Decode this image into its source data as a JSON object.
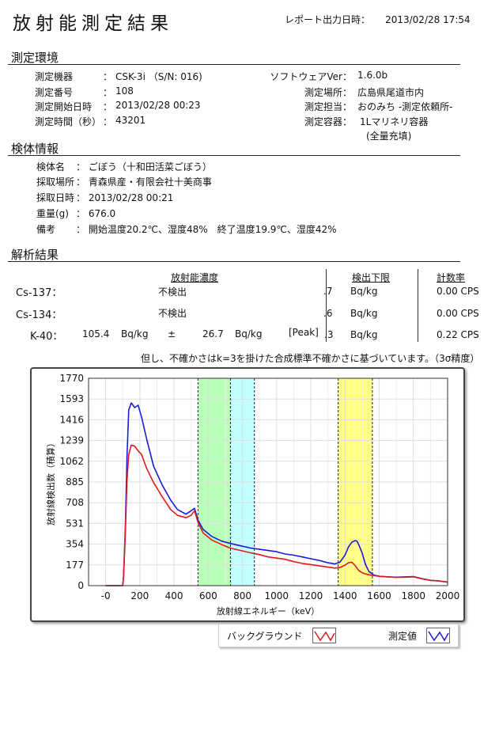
{
  "header": {
    "title": "放射能測定結果",
    "report_label": "レポート出力日時：",
    "report_datetime": "2013/02/28 17:54"
  },
  "env": {
    "section": "測定環境",
    "left": [
      {
        "label": "測定機器",
        "value": "CSK-3i （S/N: 016)"
      },
      {
        "label": "測定番号",
        "value": "108"
      },
      {
        "label": "測定開始日時",
        "value": "2013/02/28 00:23"
      },
      {
        "label": "測定時間（秒）",
        "value": "43201"
      }
    ],
    "right": [
      {
        "label": "ソフトウェアVer：",
        "value": "1.6.0b"
      },
      {
        "label": "測定場所：",
        "value": "広島県尾道市内"
      },
      {
        "label": "測定担当：",
        "value": "おのみち -測定依頼所-"
      },
      {
        "label": "測定容器：",
        "value": "1Lマリネリ容器"
      }
    ],
    "container_note": "(全量充填)"
  },
  "sample": {
    "section": "検体情報",
    "rows": [
      {
        "label": "検体名",
        "value": "： ごぼう（十和田活菜ごぼう）"
      },
      {
        "label": "採取場所",
        "value": "： 青森県産・有限会社十美商事"
      },
      {
        "label": "採取日時",
        "value": "： 2013/02/28 00:21"
      },
      {
        "label": "重量(g)",
        "value": "： 676.0"
      },
      {
        "label": "備考",
        "value": "： 開始温度20.2℃、湿度48%　終了温度19.9℃、湿度42%"
      }
    ]
  },
  "analysis": {
    "section": "解析結果",
    "headers": {
      "concentration": "放射能濃度",
      "detection_limit": "検出下限",
      "count_rate": "計数率"
    },
    "rows": [
      {
        "nuclide": "Cs-137：",
        "result": "不検出",
        "limit": ".7",
        "limit_unit": "Bq/kg",
        "cps": "0.00 CPS"
      },
      {
        "nuclide": "Cs-134：",
        "result": "不検出",
        "limit": ".6",
        "limit_unit": "Bq/kg",
        "cps": "0.00 CPS"
      }
    ],
    "k40": {
      "nuclide": "K-40：",
      "value": "105.4",
      "unit": "Bq/kg",
      "pm": "±",
      "uncertainty": "26.7",
      "unit2": "Bq/kg",
      "peak": "[Peak]",
      "limit": ".3",
      "limit_unit": "Bq/kg",
      "cps": "0.22 CPS"
    },
    "note": "但し、不確かさはk=3を掛けた合成標準不確かさに基づいています。（3σ精度）"
  },
  "legend": {
    "background": "バックグラウンド",
    "measured": "測定値"
  },
  "chart_data": {
    "type": "line",
    "xlabel": "放射線エネルギー（keV）",
    "ylabel": "放射線検出数（積算）",
    "xlim": [
      -100,
      2000
    ],
    "ylim": [
      0,
      1770
    ],
    "xticks": [
      "-0",
      "200",
      "400",
      "600",
      "800",
      "1000",
      "1200",
      "1400",
      "1600",
      "1800",
      "2000"
    ],
    "yticks": [
      "0",
      "177",
      "354",
      "531",
      "708",
      "885",
      "1062",
      "1239",
      "1416",
      "1593",
      "1770"
    ],
    "bands": [
      {
        "from": 540,
        "to": 730,
        "color": "#b9ffb9"
      },
      {
        "from": 730,
        "to": 870,
        "color": "#c2ffff"
      },
      {
        "from": 1360,
        "to": 1560,
        "color": "#ffff88"
      }
    ],
    "series": [
      {
        "name": "測定値",
        "color": "#1a1adf",
        "x": [
          0,
          100,
          105,
          115,
          125,
          135,
          150,
          170,
          190,
          210,
          240,
          280,
          330,
          380,
          420,
          470,
          500,
          520,
          540,
          570,
          620,
          680,
          730,
          790,
          850,
          900,
          950,
          1000,
          1050,
          1100,
          1150,
          1200,
          1250,
          1300,
          1340,
          1370,
          1400,
          1420,
          1440,
          1460,
          1470,
          1480,
          1500,
          1520,
          1540,
          1570,
          1600,
          1650,
          1700,
          1750,
          1800,
          1850,
          1900,
          1950,
          2000
        ],
        "y": [
          0,
          0,
          80,
          500,
          1100,
          1500,
          1560,
          1520,
          1540,
          1440,
          1250,
          1020,
          860,
          730,
          650,
          610,
          640,
          660,
          560,
          480,
          420,
          380,
          360,
          340,
          320,
          310,
          300,
          290,
          270,
          260,
          245,
          230,
          215,
          195,
          185,
          200,
          260,
          330,
          370,
          385,
          380,
          350,
          280,
          180,
          120,
          90,
          80,
          75,
          72,
          75,
          78,
          60,
          45,
          40,
          30
        ]
      },
      {
        "name": "バックグラウンド",
        "color": "#e01a1a",
        "x": [
          0,
          100,
          105,
          115,
          125,
          135,
          150,
          170,
          190,
          210,
          240,
          280,
          330,
          380,
          420,
          470,
          500,
          520,
          540,
          570,
          620,
          680,
          730,
          790,
          850,
          900,
          950,
          1000,
          1050,
          1100,
          1150,
          1200,
          1250,
          1300,
          1340,
          1370,
          1400,
          1420,
          1440,
          1460,
          1480,
          1500,
          1520,
          1550,
          1600,
          1650,
          1700,
          1750,
          1800,
          1850,
          1900,
          1950,
          2000
        ],
        "y": [
          0,
          0,
          80,
          450,
          900,
          1120,
          1200,
          1190,
          1150,
          1120,
          1000,
          880,
          760,
          650,
          600,
          580,
          600,
          640,
          540,
          450,
          390,
          350,
          320,
          300,
          280,
          265,
          245,
          235,
          225,
          205,
          190,
          180,
          168,
          158,
          150,
          155,
          175,
          195,
          200,
          170,
          130,
          110,
          100,
          90,
          80,
          75,
          70,
          72,
          75,
          58,
          45,
          40,
          30
        ]
      }
    ]
  }
}
